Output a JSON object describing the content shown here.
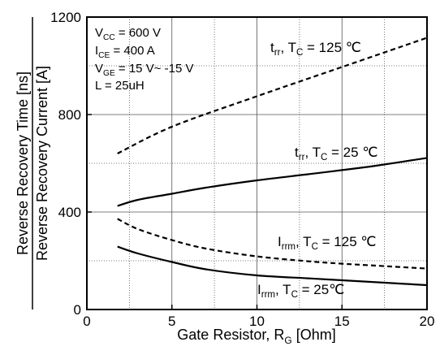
{
  "chart_data": {
    "type": "line",
    "xlabel": "Gate Resistor, R",
    "xlabel_sub": "G",
    "xlabel_unit": " [Ohm]",
    "ylabel_top": "Reverse Recovery Time [ns]",
    "ylabel_bottom": "Reverse Recovery Current [A]",
    "xlim": [
      0,
      20
    ],
    "ylim": [
      0,
      1200
    ],
    "xticks": [
      0,
      5,
      10,
      15,
      20
    ],
    "yticks": [
      0,
      400,
      800,
      1200
    ],
    "grid": true,
    "conditions": [
      {
        "main": "V",
        "sub": "CC",
        "rest": " = 600 V"
      },
      {
        "main": "I",
        "sub": "CE",
        "rest": " = 400 A"
      },
      {
        "main": "V",
        "sub": "GE",
        "rest": " = 15 V~ -15 V"
      },
      {
        "main": "L = 25uH",
        "sub": "",
        "rest": ""
      }
    ],
    "series": [
      {
        "id": "trr125",
        "style": "dashed",
        "label": {
          "a": "t",
          "a_sub": "rr",
          "b": ", T",
          "b_sub": "C",
          "c": " = 125 ℃"
        },
        "x": [
          1.8,
          5,
          10,
          15,
          20
        ],
        "y": [
          640,
          750,
          875,
          995,
          1115
        ]
      },
      {
        "id": "trr25",
        "style": "solid",
        "label": {
          "a": "t",
          "a_sub": "rr",
          "b": ", T",
          "b_sub": "C",
          "c": " = 25 ℃"
        },
        "x": [
          1.8,
          3,
          5,
          7,
          10,
          13,
          15,
          17,
          20
        ],
        "y": [
          425,
          450,
          475,
          500,
          530,
          555,
          572,
          590,
          622
        ]
      },
      {
        "id": "irrm125",
        "style": "dashed",
        "label": {
          "a": "I",
          "a_sub": "rrm",
          "b": ", T",
          "b_sub": "C",
          "c": " = 125 ℃"
        },
        "x": [
          1.8,
          3,
          5,
          7,
          10,
          13,
          15,
          17,
          20
        ],
        "y": [
          372,
          330,
          285,
          250,
          218,
          198,
          188,
          180,
          168
        ]
      },
      {
        "id": "irrm25",
        "style": "solid",
        "label": {
          "a": "I",
          "a_sub": "rrm",
          "b": ", T",
          "b_sub": "C",
          "c": " = 25℃"
        },
        "x": [
          1.8,
          3,
          5,
          7,
          10,
          13,
          15,
          17,
          20
        ],
        "y": [
          258,
          230,
          195,
          165,
          140,
          128,
          120,
          112,
          100
        ]
      }
    ]
  }
}
